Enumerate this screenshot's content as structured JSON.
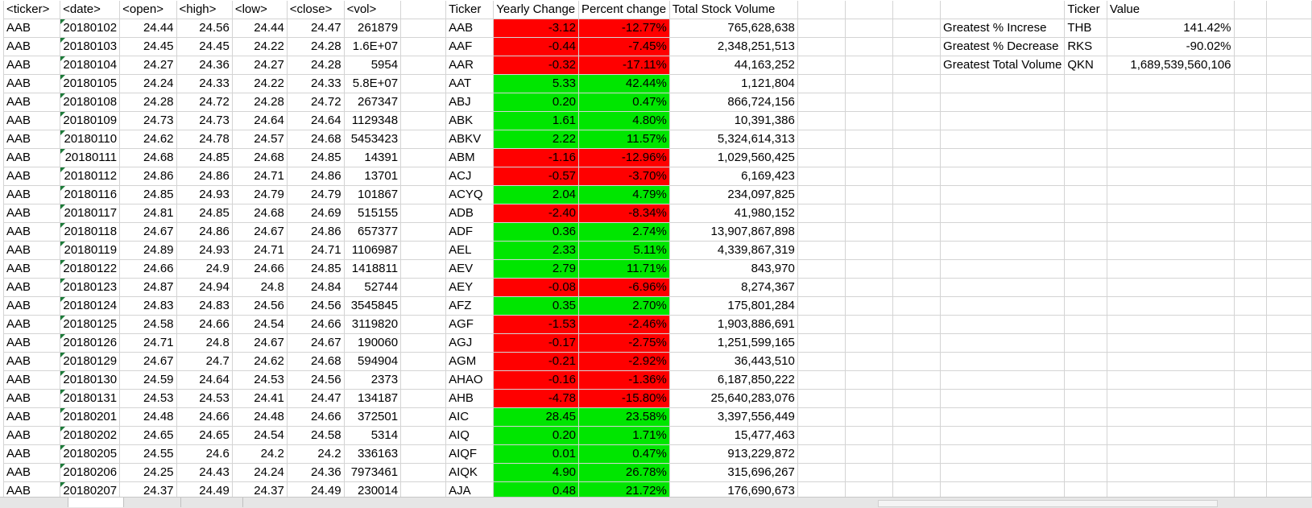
{
  "raw_headers": [
    "<ticker>",
    "<date>",
    "<open>",
    "<high>",
    "<low>",
    "<close>",
    "<vol>"
  ],
  "summary_headers": [
    "Ticker",
    "Yearly Change",
    "Percent change",
    "Total Stock Volume"
  ],
  "stats_headers": [
    "Ticker",
    "Value"
  ],
  "colors": {
    "negative": "#ff0000",
    "positive": "#00e600",
    "gridline": "#d4d4d4"
  },
  "raw_rows": [
    [
      "AAB",
      "20180102",
      "24.44",
      "24.56",
      "24.44",
      "24.47",
      "261879"
    ],
    [
      "AAB",
      "20180103",
      "24.45",
      "24.45",
      "24.22",
      "24.28",
      "1.6E+07"
    ],
    [
      "AAB",
      "20180104",
      "24.27",
      "24.36",
      "24.27",
      "24.28",
      "5954"
    ],
    [
      "AAB",
      "20180105",
      "24.24",
      "24.33",
      "24.22",
      "24.33",
      "5.8E+07"
    ],
    [
      "AAB",
      "20180108",
      "24.28",
      "24.72",
      "24.28",
      "24.72",
      "267347"
    ],
    [
      "AAB",
      "20180109",
      "24.73",
      "24.73",
      "24.64",
      "24.64",
      "1129348"
    ],
    [
      "AAB",
      "20180110",
      "24.62",
      "24.78",
      "24.57",
      "24.68",
      "5453423"
    ],
    [
      "AAB",
      "20180111",
      "24.68",
      "24.85",
      "24.68",
      "24.85",
      "14391"
    ],
    [
      "AAB",
      "20180112",
      "24.86",
      "24.86",
      "24.71",
      "24.86",
      "13701"
    ],
    [
      "AAB",
      "20180116",
      "24.85",
      "24.93",
      "24.79",
      "24.79",
      "101867"
    ],
    [
      "AAB",
      "20180117",
      "24.81",
      "24.85",
      "24.68",
      "24.69",
      "515155"
    ],
    [
      "AAB",
      "20180118",
      "24.67",
      "24.86",
      "24.67",
      "24.86",
      "657377"
    ],
    [
      "AAB",
      "20180119",
      "24.89",
      "24.93",
      "24.71",
      "24.71",
      "1106987"
    ],
    [
      "AAB",
      "20180122",
      "24.66",
      "24.9",
      "24.66",
      "24.85",
      "1418811"
    ],
    [
      "AAB",
      "20180123",
      "24.87",
      "24.94",
      "24.8",
      "24.84",
      "52744"
    ],
    [
      "AAB",
      "20180124",
      "24.83",
      "24.83",
      "24.56",
      "24.56",
      "3545845"
    ],
    [
      "AAB",
      "20180125",
      "24.58",
      "24.66",
      "24.54",
      "24.66",
      "3119820"
    ],
    [
      "AAB",
      "20180126",
      "24.71",
      "24.8",
      "24.67",
      "24.67",
      "190060"
    ],
    [
      "AAB",
      "20180129",
      "24.67",
      "24.7",
      "24.62",
      "24.68",
      "594904"
    ],
    [
      "AAB",
      "20180130",
      "24.59",
      "24.64",
      "24.53",
      "24.56",
      "2373"
    ],
    [
      "AAB",
      "20180131",
      "24.53",
      "24.53",
      "24.41",
      "24.47",
      "134187"
    ],
    [
      "AAB",
      "20180201",
      "24.48",
      "24.66",
      "24.48",
      "24.66",
      "372501"
    ],
    [
      "AAB",
      "20180202",
      "24.65",
      "24.65",
      "24.54",
      "24.58",
      "5314"
    ],
    [
      "AAB",
      "20180205",
      "24.55",
      "24.6",
      "24.2",
      "24.2",
      "336163"
    ],
    [
      "AAB",
      "20180206",
      "24.25",
      "24.43",
      "24.24",
      "24.36",
      "7973461"
    ],
    [
      "AAB",
      "20180207",
      "24.37",
      "24.49",
      "24.37",
      "24.49",
      "230014"
    ]
  ],
  "summary_rows": [
    [
      "AAB",
      "-3.12",
      "-12.77%",
      "765,628,638"
    ],
    [
      "AAF",
      "-0.44",
      "-7.45%",
      "2,348,251,513"
    ],
    [
      "AAR",
      "-0.32",
      "-17.11%",
      "44,163,252"
    ],
    [
      "AAT",
      "5.33",
      "42.44%",
      "1,121,804"
    ],
    [
      "ABJ",
      "0.20",
      "0.47%",
      "866,724,156"
    ],
    [
      "ABK",
      "1.61",
      "4.80%",
      "10,391,386"
    ],
    [
      "ABKV",
      "2.22",
      "11.57%",
      "5,324,614,313"
    ],
    [
      "ABM",
      "-1.16",
      "-12.96%",
      "1,029,560,425"
    ],
    [
      "ACJ",
      "-0.57",
      "-3.70%",
      "6,169,423"
    ],
    [
      "ACYQ",
      "2.04",
      "4.79%",
      "234,097,825"
    ],
    [
      "ADB",
      "-2.40",
      "-8.34%",
      "41,980,152"
    ],
    [
      "ADF",
      "0.36",
      "2.74%",
      "13,907,867,898"
    ],
    [
      "AEL",
      "2.33",
      "5.11%",
      "4,339,867,319"
    ],
    [
      "AEV",
      "2.79",
      "11.71%",
      "843,970"
    ],
    [
      "AEY",
      "-0.08",
      "-6.96%",
      "8,274,367"
    ],
    [
      "AFZ",
      "0.35",
      "2.70%",
      "175,801,284"
    ],
    [
      "AGF",
      "-1.53",
      "-2.46%",
      "1,903,886,691"
    ],
    [
      "AGJ",
      "-0.17",
      "-2.75%",
      "1,251,599,165"
    ],
    [
      "AGM",
      "-0.21",
      "-2.92%",
      "36,443,510"
    ],
    [
      "AHAO",
      "-0.16",
      "-1.36%",
      "6,187,850,222"
    ],
    [
      "AHB",
      "-4.78",
      "-15.80%",
      "25,640,283,076"
    ],
    [
      "AIC",
      "28.45",
      "23.58%",
      "3,397,556,449"
    ],
    [
      "AIQ",
      "0.20",
      "1.71%",
      "15,477,463"
    ],
    [
      "AIQF",
      "0.01",
      "0.47%",
      "913,229,872"
    ],
    [
      "AIQK",
      "4.90",
      "26.78%",
      "315,696,267"
    ],
    [
      "AJA",
      "0.48",
      "21.72%",
      "176,690,673"
    ]
  ],
  "stats_rows": [
    [
      "Greatest % Increse",
      "THB",
      "141.42%"
    ],
    [
      "Greatest % Decrease",
      "RKS",
      "-90.02%"
    ],
    [
      "Greatest Total Volume",
      "QKN",
      "1,689,539,560,106"
    ]
  ]
}
